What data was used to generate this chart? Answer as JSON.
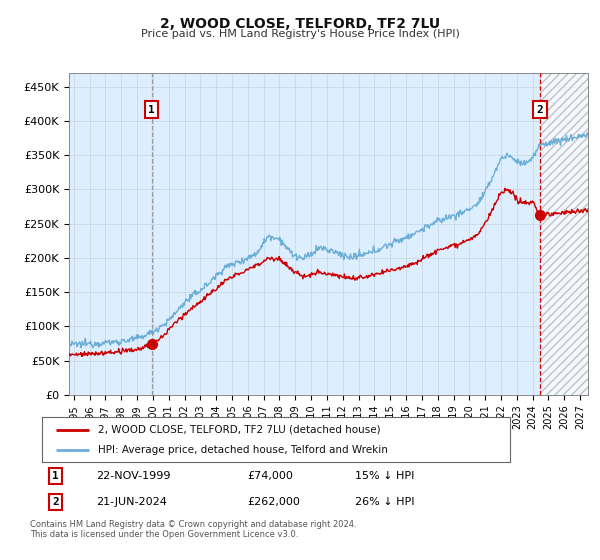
{
  "title": "2, WOOD CLOSE, TELFORD, TF2 7LU",
  "subtitle": "Price paid vs. HM Land Registry's House Price Index (HPI)",
  "background_color": "#ffffff",
  "grid_color": "#c8d8e8",
  "plot_bg_color": "#ddeeff",
  "ylabel_color": "#333333",
  "ylim": [
    0,
    470000
  ],
  "yticks": [
    0,
    50000,
    100000,
    150000,
    200000,
    250000,
    300000,
    350000,
    400000,
    450000
  ],
  "ytick_labels": [
    "£0",
    "£50K",
    "£100K",
    "£150K",
    "£200K",
    "£250K",
    "£300K",
    "£350K",
    "£400K",
    "£450K"
  ],
  "sale1_price": 74000,
  "sale2_price": 262000,
  "hpi_color": "#6baed6",
  "price_paid_color": "#cc0000",
  "sale1_vline_color": "#999999",
  "sale2_vline_color": "#cc0000",
  "annotation_box_color": "#cc0000",
  "legend_label_price": "2, WOOD CLOSE, TELFORD, TF2 7LU (detached house)",
  "legend_label_hpi": "HPI: Average price, detached house, Telford and Wrekin",
  "table_row1": [
    "1",
    "22-NOV-1999",
    "£74,000",
    "15% ↓ HPI"
  ],
  "table_row2": [
    "2",
    "21-JUN-2024",
    "£262,000",
    "26% ↓ HPI"
  ],
  "footnote": "Contains HM Land Registry data © Crown copyright and database right 2024.\nThis data is licensed under the Open Government Licence v3.0.",
  "xlim_start": 1994.7,
  "xlim_end": 2027.5,
  "xticks": [
    1995,
    1996,
    1997,
    1998,
    1999,
    2000,
    2001,
    2002,
    2003,
    2004,
    2005,
    2006,
    2007,
    2008,
    2009,
    2010,
    2011,
    2012,
    2013,
    2014,
    2015,
    2016,
    2017,
    2018,
    2019,
    2020,
    2021,
    2022,
    2023,
    2024,
    2025,
    2026,
    2027
  ],
  "hatch_start": 2024.5,
  "sale1_x": 1999.92,
  "sale2_x": 2024.46
}
